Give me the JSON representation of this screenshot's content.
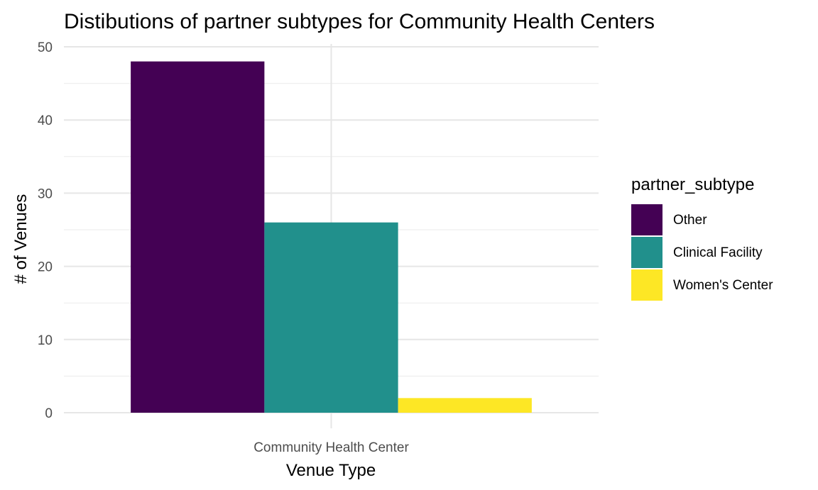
{
  "chart_data": {
    "type": "bar",
    "title": "Distibutions of partner subtypes for Community Health Centers",
    "xlabel": "Venue Type",
    "ylabel": "# of Venues",
    "categories": [
      "Community Health Center"
    ],
    "series": [
      {
        "name": "Other",
        "values": [
          48
        ],
        "color": "#440154"
      },
      {
        "name": "Clinical Facility",
        "values": [
          26
        ],
        "color": "#21908C"
      },
      {
        "name": "Women's Center",
        "values": [
          2
        ],
        "color": "#FDE725"
      }
    ],
    "ylim": [
      0,
      50
    ],
    "yticks": [
      0,
      10,
      20,
      30,
      40,
      50
    ],
    "grid": true,
    "legend": {
      "title": "partner_subtype",
      "position": "right"
    }
  }
}
